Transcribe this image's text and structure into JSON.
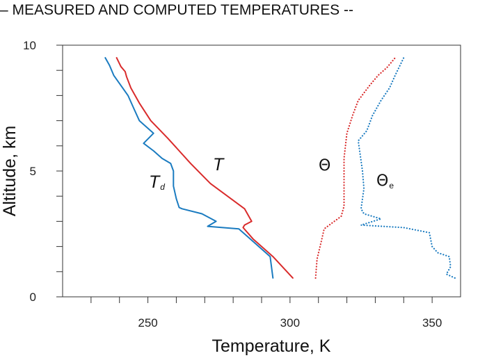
{
  "header": {
    "banner": "– MEASURED AND COMPUTED TEMPERATURES --"
  },
  "chart_data": {
    "type": "line",
    "xlabel": "Temperature,  K",
    "ylabel": "Altitude,  km",
    "xlim": [
      220,
      360
    ],
    "ylim": [
      0,
      10
    ],
    "xticks": [
      250,
      300,
      350
    ],
    "yticks": [
      0,
      5,
      10
    ],
    "grid": false,
    "annotations": [
      {
        "text": "T",
        "sub": ""
      },
      {
        "text": "T",
        "sub": "d"
      },
      {
        "text": "Θ",
        "sub": ""
      },
      {
        "text": "Θ",
        "sub": "e"
      }
    ],
    "series": [
      {
        "color": "#d92b2b",
        "style": "solid",
        "points": [
          [
            301,
            0.75
          ],
          [
            294,
            1.6
          ],
          [
            287,
            2.3
          ],
          [
            283.5,
            2.75
          ],
          [
            284,
            2.85
          ],
          [
            286.5,
            3.0
          ],
          [
            284,
            3.5
          ],
          [
            272,
            4.5
          ],
          [
            265,
            5.3
          ],
          [
            257,
            6.3
          ],
          [
            251,
            7.0
          ],
          [
            247,
            7.7
          ],
          [
            244,
            8.3
          ],
          [
            242.5,
            8.75
          ],
          [
            242,
            8.95
          ],
          [
            240.5,
            9.15
          ],
          [
            239,
            9.5
          ]
        ]
      },
      {
        "color": "#1a7bc0",
        "style": "solid",
        "points": [
          [
            294,
            0.75
          ],
          [
            293,
            1.6
          ],
          [
            286,
            2.3
          ],
          [
            282,
            2.7
          ],
          [
            271,
            2.8
          ],
          [
            274,
            3.0
          ],
          [
            269,
            3.3
          ],
          [
            262,
            3.5
          ],
          [
            261,
            3.55
          ],
          [
            260,
            3.9
          ],
          [
            259,
            4.4
          ],
          [
            259,
            5.0
          ],
          [
            258,
            5.3
          ],
          [
            255,
            5.5
          ],
          [
            252,
            5.8
          ],
          [
            248.5,
            6.1
          ],
          [
            252,
            6.5
          ],
          [
            247,
            7.0
          ],
          [
            245,
            7.5
          ],
          [
            243,
            8.0
          ],
          [
            238,
            8.8
          ],
          [
            236.5,
            9.2
          ],
          [
            235,
            9.5
          ]
        ]
      },
      {
        "color": "#d92b2b",
        "style": "dotted",
        "points": [
          [
            309,
            0.75
          ],
          [
            309.5,
            1.5
          ],
          [
            311,
            2.2
          ],
          [
            312,
            2.7
          ],
          [
            315,
            2.95
          ],
          [
            318,
            3.2
          ],
          [
            319,
            3.6
          ],
          [
            319,
            4.2
          ],
          [
            319,
            5.0
          ],
          [
            319,
            5.5
          ],
          [
            320,
            6.5
          ],
          [
            322,
            7.2
          ],
          [
            324,
            7.8
          ],
          [
            328,
            8.4
          ],
          [
            331,
            8.8
          ],
          [
            334,
            9.1
          ],
          [
            337,
            9.5
          ]
        ]
      },
      {
        "color": "#1a7bc0",
        "style": "dotted",
        "points": [
          [
            358,
            0.75
          ],
          [
            355,
            0.9
          ],
          [
            356.5,
            1.2
          ],
          [
            356,
            1.6
          ],
          [
            352,
            1.75
          ],
          [
            350,
            2.0
          ],
          [
            349,
            2.55
          ],
          [
            340,
            2.75
          ],
          [
            325,
            2.85
          ],
          [
            332,
            3.1
          ],
          [
            326,
            3.3
          ],
          [
            325,
            3.5
          ],
          [
            326,
            4.3
          ],
          [
            325.5,
            5.0
          ],
          [
            325,
            5.4
          ],
          [
            324,
            6.2
          ],
          [
            327,
            6.6
          ],
          [
            329,
            7.2
          ],
          [
            332,
            7.8
          ],
          [
            335,
            8.3
          ],
          [
            337,
            8.8
          ],
          [
            340,
            9.5
          ]
        ]
      }
    ]
  }
}
